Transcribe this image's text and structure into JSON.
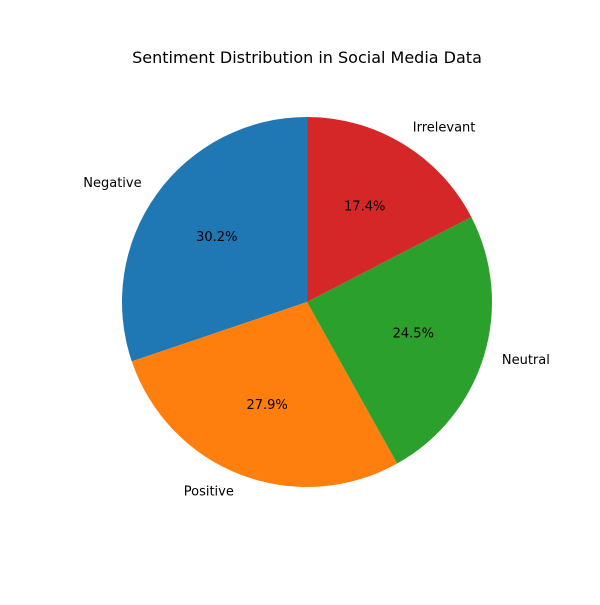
{
  "chart_data": {
    "type": "pie",
    "title": "Sentiment Distribution in Social Media Data",
    "categories": [
      "Negative",
      "Positive",
      "Neutral",
      "Irrelevant"
    ],
    "values": [
      30.2,
      27.9,
      24.5,
      17.4
    ],
    "percent_labels": [
      "30.2%",
      "27.9%",
      "24.5%",
      "17.4%"
    ],
    "colors": [
      "#1f77b4",
      "#ff7f0e",
      "#2ca02c",
      "#d62728"
    ],
    "start_angle_deg": 90,
    "direction": "counterclockwise",
    "legend": "none"
  }
}
